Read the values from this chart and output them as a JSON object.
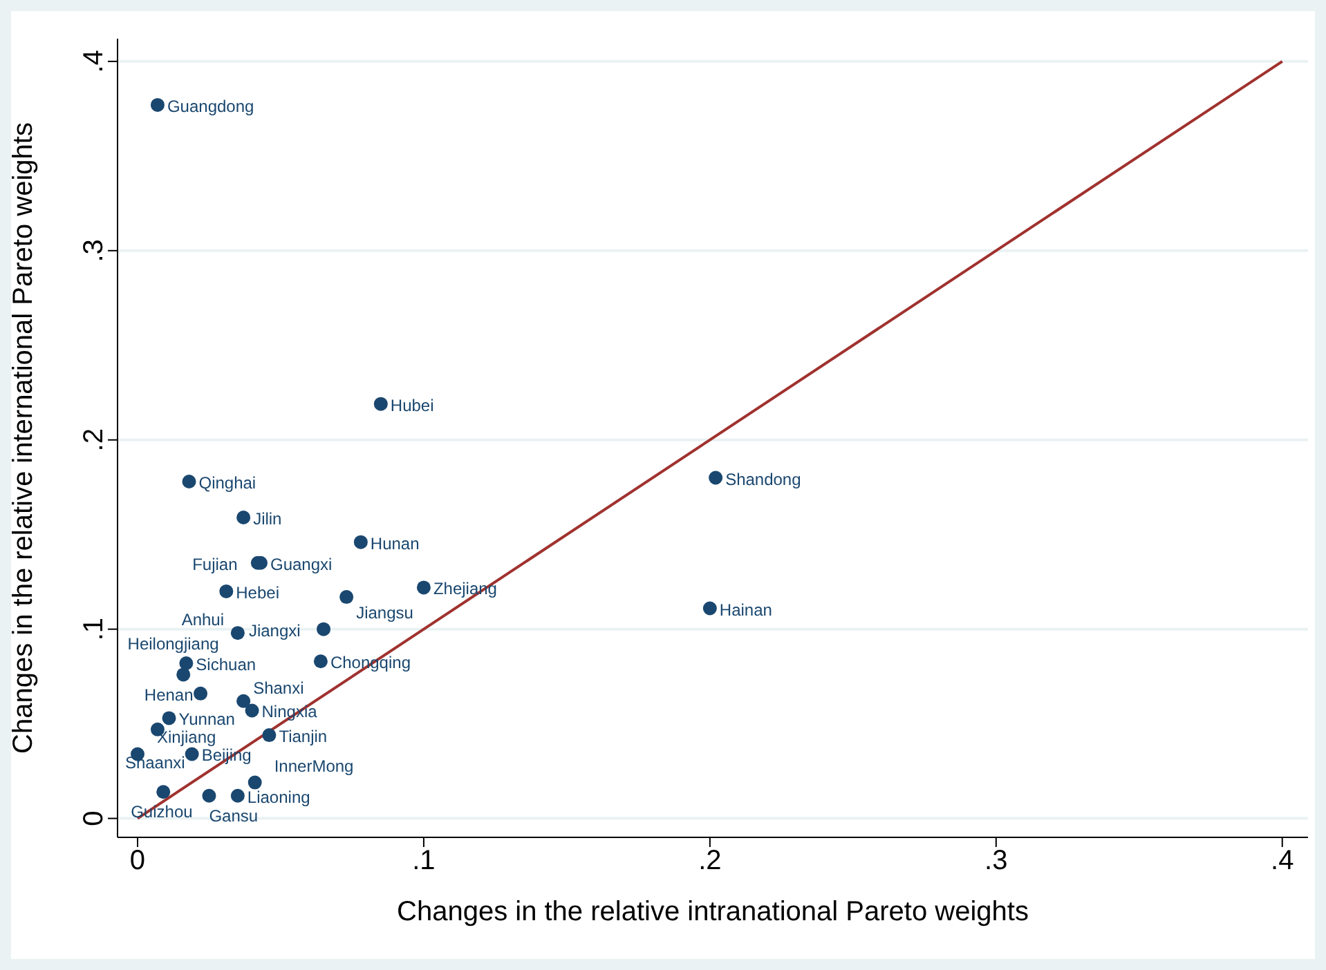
{
  "chart_data": {
    "type": "scatter",
    "xlabel": "Changes in the relative intranational Pareto weights",
    "ylabel": "Changes in the relative international Pareto weights",
    "xlim": [
      -0.007,
      0.409
    ],
    "ylim": [
      -0.01,
      0.412
    ],
    "xticks": [
      {
        "value": 0,
        "label": "0"
      },
      {
        "value": 0.1,
        "label": ".1"
      },
      {
        "value": 0.2,
        "label": ".2"
      },
      {
        "value": 0.3,
        "label": ".3"
      },
      {
        "value": 0.4,
        "label": ".4"
      }
    ],
    "yticks": [
      {
        "value": 0,
        "label": "0"
      },
      {
        "value": 0.1,
        "label": ".1"
      },
      {
        "value": 0.2,
        "label": ".2"
      },
      {
        "value": 0.3,
        "label": ".3"
      },
      {
        "value": 0.4,
        "label": ".4"
      }
    ],
    "grid": "y",
    "series": [
      {
        "type": "scatter",
        "marker": "circle",
        "color": "#1a476f",
        "x": [
          0.007,
          0.085,
          0.202,
          0.018,
          0.037,
          0.078,
          0.042,
          0.043,
          0.031,
          0.1,
          0.073,
          0.2,
          0.035,
          0.065,
          0.064,
          0.017,
          0.016,
          0.022,
          0.037,
          0.04,
          0.011,
          0.007,
          0.046,
          0.0,
          0.019,
          0.009,
          0.025,
          0.035,
          0.041
        ],
        "values": [
          0.377,
          0.219,
          0.18,
          0.178,
          0.159,
          0.146,
          0.135,
          0.135,
          0.12,
          0.122,
          0.117,
          0.111,
          0.098,
          0.1,
          0.083,
          0.082,
          0.076,
          0.066,
          0.062,
          0.057,
          0.053,
          0.047,
          0.044,
          0.034,
          0.034,
          0.014,
          0.012,
          0.012,
          0.019
        ],
        "value_labels": [
          "Guangdong",
          "Hubei",
          "Shandong",
          "Qinghai",
          "Jilin",
          "Hunan",
          "Fujian",
          "Guangxi",
          "Hebei",
          "Zhejiang",
          "Jiangsu",
          "Hainan",
          "Anhui",
          "Jiangxi",
          "Chongqing",
          "Sichuan",
          "Heilongjiang",
          "Henan",
          "Shanxi",
          "Ningxia",
          "Yunnan",
          "Shaanxi",
          "Tianjin",
          "Xinjiang",
          "Beijing",
          "Guizhou",
          "Gansu",
          "Liaoning",
          "InnerMong"
        ]
      },
      {
        "type": "line",
        "color": "#a0322f",
        "x": [
          0,
          0.4
        ],
        "values": [
          0,
          0.4
        ]
      }
    ]
  }
}
